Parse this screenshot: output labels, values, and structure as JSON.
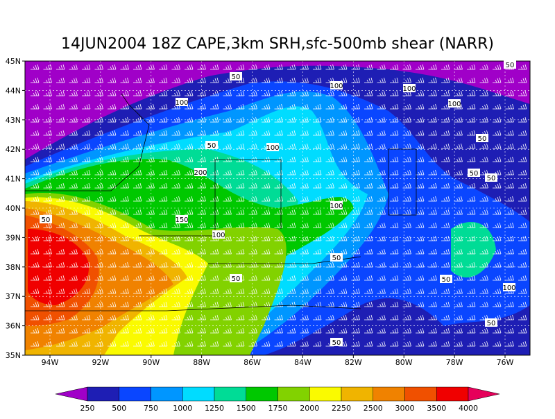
{
  "title": "14JUN2004 18Z CAPE,3km SRH,sfc-500mb shear (NARR)",
  "lat_labels": [
    "35N",
    "36N",
    "37N",
    "38N",
    "39N",
    "40N",
    "41N",
    "42N",
    "43N",
    "44N",
    "45N"
  ],
  "lon_labels": [
    "94W",
    "92W",
    "90W",
    "88W",
    "86W",
    "84W",
    "82W",
    "80W",
    "78W",
    "76W"
  ],
  "contour_labels": [
    "50",
    "100",
    "100",
    "100",
    "100",
    "50",
    "100",
    "50",
    "200",
    "50",
    "50",
    "100",
    "50",
    "150",
    "100",
    "50",
    "50",
    "50",
    "100",
    "50",
    "50",
    "50"
  ],
  "colorbar": {
    "levels": [
      250,
      500,
      750,
      1000,
      1250,
      1500,
      1750,
      2000,
      2250,
      2500,
      3000,
      3500,
      4000
    ],
    "colors": [
      "#a000c8",
      "#1e1eb4",
      "#0a46ff",
      "#0096ff",
      "#00dcff",
      "#00dc96",
      "#00c800",
      "#82d200",
      "#fafa00",
      "#f0b400",
      "#f08200",
      "#f05000",
      "#f00000",
      "#e6005a"
    ]
  }
}
